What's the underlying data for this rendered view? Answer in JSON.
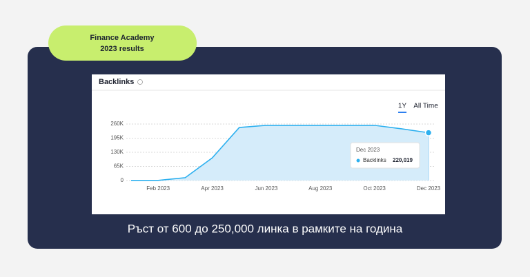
{
  "badge": [
    "Finance Academy",
    "2023 results"
  ],
  "caption": "Ръст от 600 до 250,000 линка в рамките на година",
  "chart_data": {
    "type": "area",
    "title": "Backlinks",
    "range_options": [
      "1Y",
      "All Time"
    ],
    "active_range": 0,
    "categories": [
      null,
      "Feb 2023",
      null,
      "Apr 2023",
      null,
      "Jun 2023",
      null,
      "Aug 2023",
      null,
      "Oct 2023",
      null,
      "Dec 2023"
    ],
    "series": [
      {
        "name": "Backlinks",
        "color": "#2db0ef",
        "values": [
          600,
          600,
          13000,
          104000,
          244000,
          254000,
          254000,
          254000,
          254000,
          254000,
          238000,
          220019
        ],
        "value_labels": [
          null,
          null,
          null,
          null,
          null,
          null,
          null,
          null,
          null,
          null,
          null,
          "220,019"
        ]
      }
    ],
    "ylim": [
      0,
      260000
    ],
    "yticks": [
      0,
      {
        "value": 65000,
        "label": "65K"
      },
      {
        "value": 130000,
        "label": "130K"
      },
      {
        "value": 195000,
        "label": "195K"
      },
      {
        "value": 260000,
        "label": "260K"
      }
    ],
    "grid": true
  }
}
